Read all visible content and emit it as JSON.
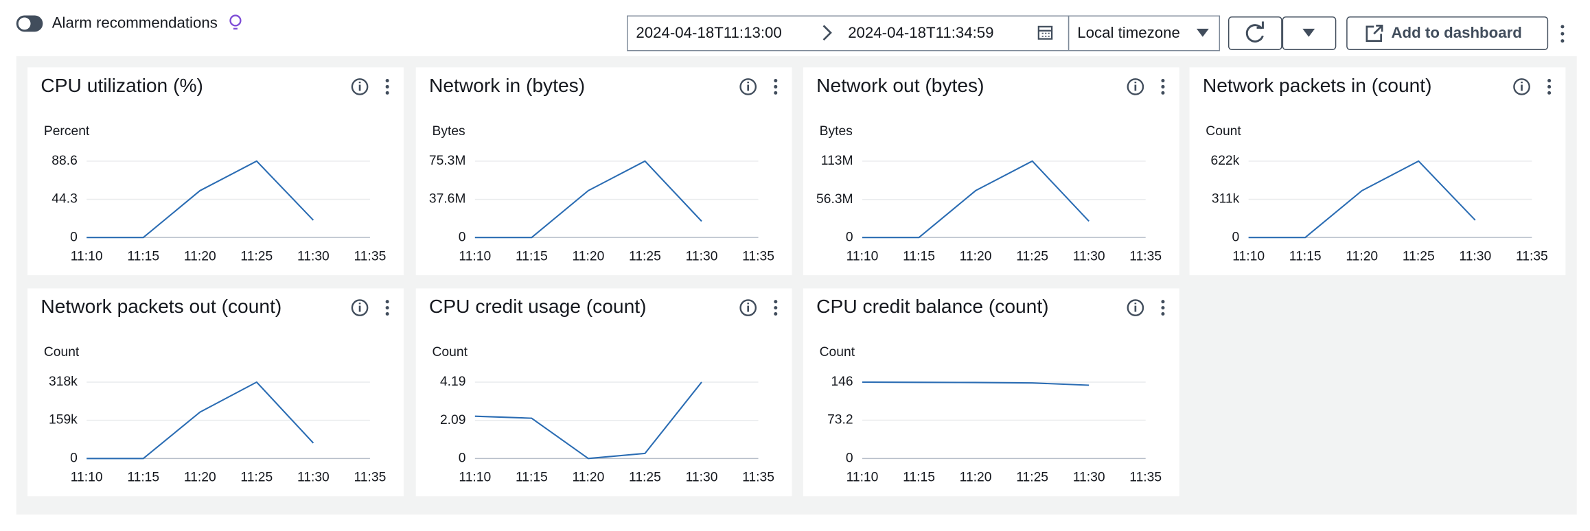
{
  "toolbar": {
    "toggle_label": "Alarm recommendations",
    "start_time": "2024-04-18T11:13:00",
    "end_time": "2024-04-18T11:34:59",
    "timezone": "Local timezone",
    "add_button": "Add to dashboard"
  },
  "chart_data": [
    {
      "type": "line",
      "title": "CPU utilization (%)",
      "y_label": "Percent",
      "color": "#2a6cb3",
      "grid": true,
      "x": [
        "11:10",
        "11:15",
        "11:20",
        "11:25",
        "11:30",
        "11:35"
      ],
      "values": [
        0,
        0,
        54.3,
        88.6,
        20.1,
        null
      ],
      "ylim": [
        0,
        88.6
      ],
      "yticks": [
        0,
        44.3,
        88.6
      ]
    },
    {
      "type": "line",
      "title": "Network in (bytes)",
      "y_label": "Bytes",
      "color": "#2a6cb3",
      "grid": true,
      "x": [
        "11:10",
        "11:15",
        "11:20",
        "11:25",
        "11:30",
        "11:35"
      ],
      "values": [
        0,
        0,
        46200000,
        75300000,
        16000000,
        null
      ],
      "ylim": [
        0,
        75300000
      ],
      "yticks": [
        0,
        {
          "value": 37600000,
          "label": "37.6M"
        },
        {
          "value": 75300000,
          "label": "75.3M"
        }
      ]
    },
    {
      "type": "line",
      "title": "Network out (bytes)",
      "y_label": "Bytes",
      "color": "#2a6cb3",
      "grid": true,
      "x": [
        "11:10",
        "11:15",
        "11:20",
        "11:25",
        "11:30",
        "11:35"
      ],
      "values": [
        0,
        0,
        69300000,
        113000000,
        24100000,
        null
      ],
      "ylim": [
        0,
        113000000
      ],
      "yticks": [
        0,
        {
          "value": 56300000,
          "label": "56.3M"
        },
        {
          "value": 113000000,
          "label": "113M"
        }
      ]
    },
    {
      "type": "line",
      "title": "Network packets in (count)",
      "y_label": "Count",
      "color": "#2a6cb3",
      "grid": true,
      "x": [
        "11:10",
        "11:15",
        "11:20",
        "11:25",
        "11:30",
        "11:35"
      ],
      "values": [
        0,
        0,
        381000,
        622000,
        141000,
        null
      ],
      "ylim": [
        0,
        622000
      ],
      "yticks": [
        0,
        {
          "value": 311000,
          "label": "311k"
        },
        {
          "value": 622000,
          "label": "622k"
        }
      ]
    },
    {
      "type": "line",
      "title": "Network packets out (count)",
      "y_label": "Count",
      "color": "#2a6cb3",
      "grid": true,
      "x": [
        "11:10",
        "11:15",
        "11:20",
        "11:25",
        "11:30",
        "11:35"
      ],
      "values": [
        0,
        0,
        193000,
        318000,
        64500,
        null
      ],
      "ylim": [
        0,
        318000
      ],
      "yticks": [
        0,
        {
          "value": 159000,
          "label": "159k"
        },
        {
          "value": 318000,
          "label": "318k"
        }
      ]
    },
    {
      "type": "line",
      "title": "CPU credit usage (count)",
      "y_label": "Count",
      "color": "#2a6cb3",
      "grid": true,
      "x": [
        "11:10",
        "11:15",
        "11:20",
        "11:25",
        "11:30",
        "11:35"
      ],
      "values": [
        2.32,
        2.21,
        0,
        0.28,
        4.19,
        null
      ],
      "ylim": [
        0,
        4.19
      ],
      "yticks": [
        0,
        2.09,
        4.19
      ]
    },
    {
      "type": "line",
      "title": "CPU credit balance (count)",
      "y_label": "Count",
      "color": "#2a6cb3",
      "grid": true,
      "x": [
        "11:10",
        "11:15",
        "11:20",
        "11:25",
        "11:30",
        "11:35"
      ],
      "values": [
        146,
        145.6,
        145.2,
        144.4,
        140.1,
        null
      ],
      "ylim": [
        0,
        146
      ],
      "yticks": [
        0,
        73.2,
        146
      ]
    }
  ]
}
